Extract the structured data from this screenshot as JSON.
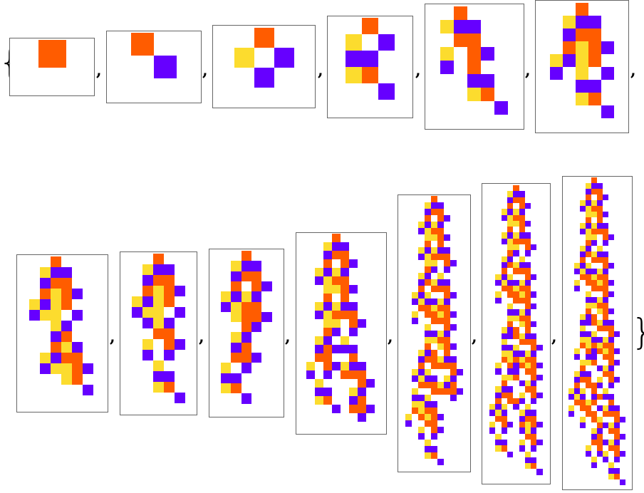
{
  "open_brace": "{",
  "close_brace": "}",
  "separator": ",",
  "colors": {
    "o": "#FF5C00",
    "p": "#6600FF",
    "y": "#FCDC2E",
    "frame": "#666666"
  },
  "panels": [
    {
      "grid": [
        "o"
      ]
    },
    {
      "grid": [
        "o.",
        ".p"
      ]
    },
    {
      "grid": [
        ".o.",
        "y.p",
        ".p."
      ]
    },
    {
      "grid": [
        ".o.",
        "y.p",
        "pp.",
        "yo.",
        "..p"
      ]
    },
    {
      "grid": [
        ".o...",
        "ypp..",
        ".oo..",
        "y.op.",
        "p.o..",
        "..pp.",
        "..yo.",
        "....p"
      ]
    },
    {
      "grid": [
        "..o..",
        ".ypp.",
        ".poo.",
        ".oyop",
        "ypyo.",
        "p.y.p",
        "..pp.",
        "..yo.",
        "....p"
      ]
    },
    {
      "grid": [
        "..o...",
        ".ypp..",
        ".poo..",
        ".oyop.",
        "ypyo..",
        "pyy.p.",
        "..yp..",
        "..po..",
        "..oyp.",
        ".ypoo.",
        ".pyyop",
        "...yo.",
        ".....p"
      ]
    },
    {
      "grid": [
        "..o..",
        ".ypp.",
        ".poo.",
        ".oyop",
        "ypyo.",
        "pyy.p",
        ".pyp.",
        "..oo.",
        ".y.op",
        ".p.p.",
        "..y..",
        "..pp.",
        "..yo.",
        "....p"
      ]
    },
    {
      "grid": [
        "..o..",
        ".ypp.",
        ".poo.",
        ".o.op",
        "ypyp.",
        "pyoo.",
        ".yoop",
        "..op.",
        ".yp..",
        ".po..",
        ".oop.",
        "y.p..",
        "pp...",
        "yo...",
        "..p.."
      ]
    },
    {
      "grid": [
        "...o....",
        "..ypp...",
        "..poo...",
        "..o.op..",
        ".ypyp...",
        ".pyoo...",
        "..yyop..",
        "..o.o...",
        ".ypypp..",
        ".pyooo..",
        "..yy.op.",
        "..op.p..",
        ".yp.y...",
        ".poppp..",
        ".oo..o..",
        "y.opypp.",
        "p.p.ooo.",
        ".y....op",
        ".pp..yp.",
        ".yo..po.",
        "...p.oop",
        "......p."
      ]
    },
    {
      "grid": [
        "....o....",
        "...ypp...",
        "...poo...",
        "...o.op..",
        "..ypyp...",
        "..pyoo...",
        "...yyop..",
        "...o.o...",
        "..ypypp..",
        "..pyooo..",
        "...yy.op.",
        "...op.p..",
        "..yp.y...",
        "..poypp..",
        "..o.ooo..",
        ".ypy..op.",
        ".pyppyp..",
        "..ooyoo..",
        ".y.ooyop.",
        ".p..ooo..",
        "...y..op.",
        "...ppyp..",
        "...yyoo..",
        "...o.yop.",
        "..ypo.o..",
        "..pooypp.",
        "..o.oooo.",
        ".ypy...op",
        ".pypp.yp.",
        "..oooypo.",
        ".y..oooop",
        ".ppy...p.",
        ".yypp....",
        ".oyoo....",
        "y.oyop...",
        "p..oo....",
        "..y.op...",
        "..p.p....",
        "...y.....",
        "...pp....",
        "...yo....",
        ".....p..."
      ]
    },
    {
      "grid": [
        "....o....",
        "...ypp...",
        "...poo...",
        "...o.op..",
        "..ypyp...",
        "..pyoo...",
        "...yyop..",
        "...o.o...",
        "..ypypp..",
        "..pyooo..",
        "...yy.op.",
        "...op.p..",
        "..yp.y...",
        "..poypp..",
        "..o.ooo..",
        ".ypy..op.",
        ".pyppyp..",
        "..ooyoo..",
        ".y.ooyop.",
        ".p..ooo..",
        "...y..op.",
        "...ppyp..",
        "...yyoo..",
        "...o.yop.",
        "..ypo.o..",
        "..ppoypp.",
        "..y..ooo.",
        "..ppy..op",
        "..yyppyp.",
        "..oyoyoo.",
        ".y.opoyop",
        ".p.pp.oo.",
        "..yyo..op",
        "..o..pyp.",
        ".ypp..oo.",
        ".poo.y.op",
        ".o.oop.p.",
        "ypy.p.y..",
        "pyp..ypp.",
        ".oo..poo.",
        "y.op.oyop",
        "p.p..pyp.",
        ".y....oo.",
        ".pp..y.op",
        ".yo..p.p.",
        "...p..y..",
        "......pp.",
        "......yo.",
        "........p"
      ]
    },
    {
      "grid": [
        "....o.....",
        "...ypp....",
        "...poo....",
        "...o.op...",
        "..ypyp....",
        "..pyoo....",
        "...yyop...",
        "...o.o....",
        "..ypypp...",
        "..pyooo...",
        "...yy.op..",
        "...op.p...",
        "..yp.y....",
        "..poypp...",
        "..o.ooo...",
        ".ypy..op..",
        ".pyppyp...",
        "..ooyoo...",
        ".y.ooyop..",
        ".p..ooo...",
        "...y..op..",
        "...ppyp...",
        "...yyoo...",
        "...o.yop..",
        "..ypo.o...",
        "..ppoypp..",
        "..y..ooo..",
        "..ppy..op.",
        "..yyppyp..",
        "..oyoyoo..",
        ".y.opoyop.",
        ".p.pp.oo..",
        "..yyo..op.",
        "..o..pyp..",
        ".ypp..oo..",
        ".poo.y.op.",
        ".o.oop.p..",
        "ypy.o.y...",
        "pyp.popp..",
        ".ooyo..o..",
        "y.oo.pypp.",
        "p..oo.ooo.",
        "..y.oy..op",
        "..p..opyp.",
        "....yp.oo.",
        "....po..op",
        "....oopyp.",
        "...y.o.oo.",
        "...p.py.op",
        "....y.p.p.",
        "....p..y..",
        ".......pp.",
        ".......yo.",
        ".........p"
      ]
    }
  ]
}
